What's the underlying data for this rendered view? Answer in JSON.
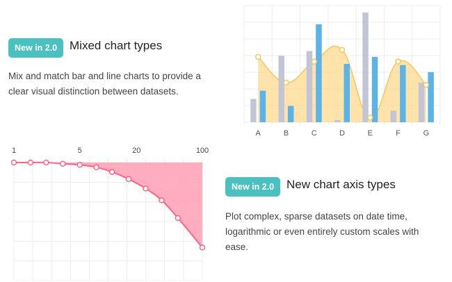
{
  "feature_mixed": {
    "badge": "New in 2.0",
    "title": "Mixed chart types",
    "description": "Mix and match bar and line charts to provide a clear visual distinction between datasets."
  },
  "feature_axis": {
    "badge": "New in 2.0",
    "title": "New chart axis types",
    "description": "Plot complex, sparse datasets on date time, logarithmic or even entirely custom scales with ease."
  },
  "colors": {
    "badge_bg": "#4bc0c0",
    "bar_grey": "#c2c5d6",
    "bar_blue": "#5ab4e8",
    "area_yellow": "#ffd98e",
    "line_yellow": "#f7c65c",
    "area_pink": "#ff9fb4",
    "line_pink": "#ff6384",
    "grid": "#ececec"
  },
  "chart_data": [
    {
      "type": "bar",
      "categories": [
        "A",
        "B",
        "C",
        "D",
        "E",
        "F",
        "G"
      ],
      "ylim": [
        0,
        100
      ],
      "grid": true,
      "series": [
        {
          "type": "bar",
          "values": [
            20,
            57,
            61,
            2,
            94,
            10,
            34
          ]
        },
        {
          "type": "bar",
          "values": [
            27,
            14,
            84,
            50,
            56,
            49,
            43
          ]
        },
        {
          "type": "area",
          "values": [
            56,
            34,
            52,
            62,
            4,
            52,
            32
          ]
        }
      ]
    },
    {
      "type": "area",
      "x_scale": "logarithmic",
      "xlim": [
        1,
        100
      ],
      "x_ticks": [
        1,
        5,
        20,
        100
      ],
      "ylim": [
        0,
        100
      ],
      "grid": true,
      "x": [
        1,
        1.5,
        2.2,
        3.3,
        5,
        7.5,
        11,
        16.5,
        25,
        37,
        55,
        100
      ],
      "values": [
        100,
        100,
        100,
        99,
        98,
        96,
        92,
        86,
        78,
        68,
        53,
        28
      ]
    }
  ]
}
